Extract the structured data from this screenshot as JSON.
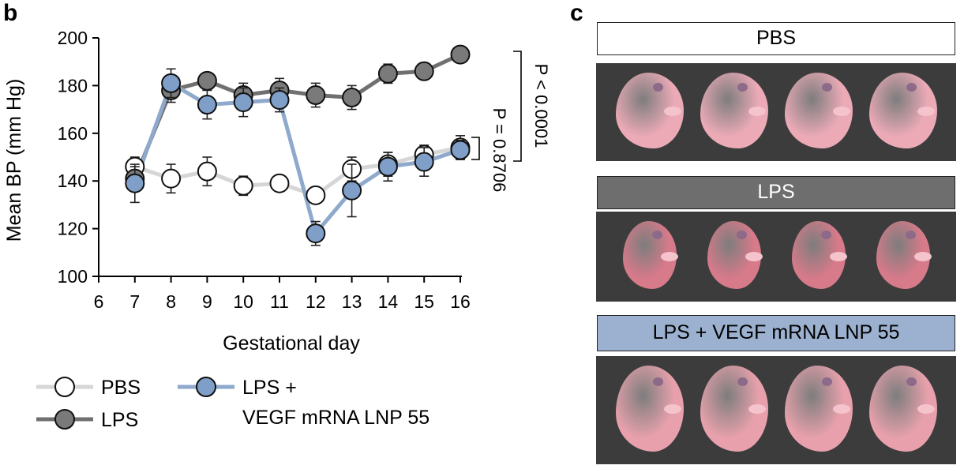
{
  "panel_b_letter": "b",
  "panel_c_letter": "c",
  "chart_data": {
    "type": "line",
    "xlabel": "Gestational day",
    "ylabel": "Mean BP (mm Hg)",
    "xlim": [
      6,
      16
    ],
    "ylim": [
      100,
      200
    ],
    "xticks": [
      6,
      7,
      8,
      9,
      10,
      11,
      12,
      13,
      14,
      15,
      16
    ],
    "yticks": [
      100,
      120,
      140,
      160,
      180,
      200
    ],
    "grid": false,
    "legend_position": "bottom-left",
    "series": [
      {
        "name": "PBS",
        "line_color": "#d6d6d6",
        "marker_fill": "#ffffff",
        "x": [
          7,
          8,
          9,
          10,
          11,
          12,
          13,
          14,
          15,
          16
        ],
        "y": [
          146,
          141,
          144,
          138,
          139,
          134,
          145,
          147,
          151,
          154
        ],
        "error": [
          4,
          6,
          6,
          4,
          2,
          2,
          5,
          5,
          4,
          5
        ]
      },
      {
        "name": "LPS",
        "line_color": "#707070",
        "marker_fill": "#7a7a7a",
        "x": [
          7,
          8,
          9,
          10,
          11,
          12,
          13,
          14,
          15,
          16
        ],
        "y": [
          141,
          178,
          182,
          176,
          178,
          176,
          175,
          185,
          186,
          193
        ],
        "error": [
          5,
          5,
          3,
          5,
          5,
          5,
          5,
          4,
          3,
          2
        ]
      },
      {
        "name": "LPS + VEGF mRNA LNP 55",
        "legend_lines": [
          "LPS +",
          "VEGF mRNA LNP 55"
        ],
        "line_color": "#8ea9cb",
        "marker_fill": "#7f9fc8",
        "x": [
          7,
          8,
          9,
          10,
          11,
          12,
          13,
          14,
          15,
          16
        ],
        "y": [
          139,
          181,
          172,
          173,
          174,
          118,
          136,
          146,
          148,
          153
        ],
        "error": [
          8,
          6,
          6,
          6,
          5,
          5,
          11,
          6,
          6,
          4
        ]
      }
    ],
    "annotations": [
      {
        "text": "P < 0.0001",
        "between": [
          "LPS",
          "PBS"
        ],
        "at_x": 16
      },
      {
        "text": "P = 0.8706",
        "between": [
          "PBS",
          "LPS + VEGF mRNA LNP 55"
        ],
        "at_x": 16
      }
    ]
  },
  "photos": {
    "groups": [
      {
        "label": "PBS",
        "label_bg": "#ffffff",
        "label_color": "#000000",
        "pup_color": "#ecaab7",
        "pups": 4
      },
      {
        "label": "LPS",
        "label_bg": "#6e6e6e",
        "label_color": "#ffffff",
        "pup_color": "#d77a8a",
        "pups": 4
      },
      {
        "label": "LPS + VEGF mRNA LNP 55",
        "label_bg": "#9bb1cf",
        "label_color": "#000000",
        "pup_color": "#e8a1ac",
        "pups": 4
      }
    ]
  }
}
